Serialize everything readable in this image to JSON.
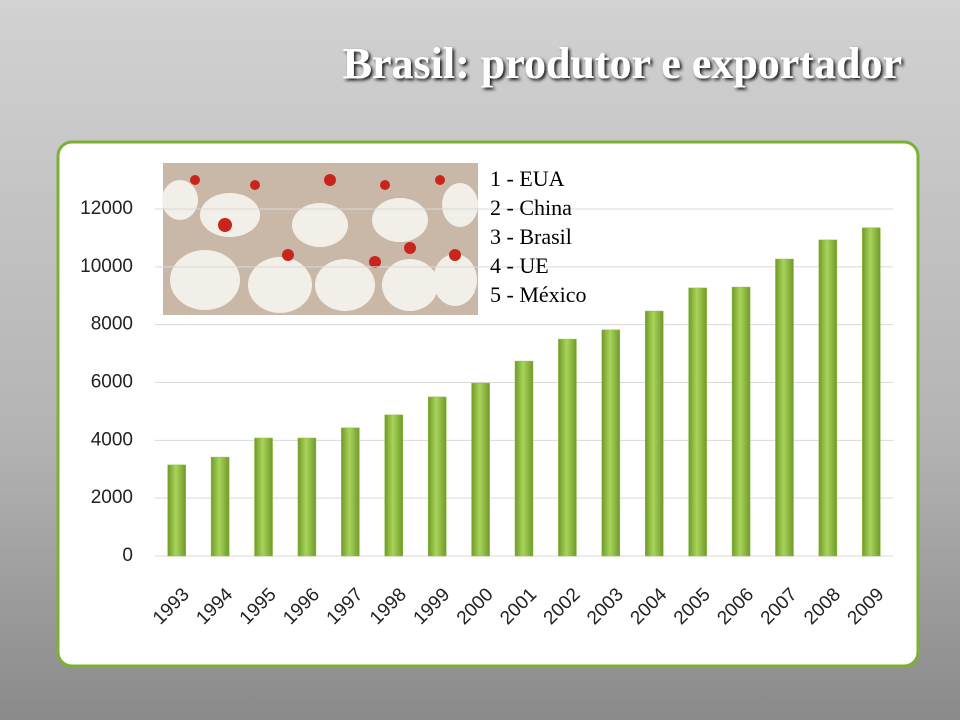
{
  "title": "Brasil: produtor e exportador",
  "chart_data": {
    "type": "bar",
    "categories": [
      "1993",
      "1994",
      "1995",
      "1996",
      "1997",
      "1998",
      "1999",
      "2000",
      "2001",
      "2002",
      "2003",
      "2004",
      "2005",
      "2006",
      "2007",
      "2008",
      "2009"
    ],
    "values": [
      3150,
      3420,
      4080,
      4080,
      4430,
      4880,
      5500,
      5980,
      6740,
      7500,
      7820,
      8470,
      9270,
      9300,
      10270,
      10930,
      11350
    ],
    "color": "#8dbb3c",
    "ylim": [
      0,
      12000
    ],
    "yticks": [
      0,
      2000,
      4000,
      6000,
      8000,
      10000,
      12000
    ],
    "grid": true,
    "annotations": [
      "1 - EUA",
      "2 - China",
      "3 - Brasil",
      "4 - UE",
      "5 - México"
    ]
  }
}
